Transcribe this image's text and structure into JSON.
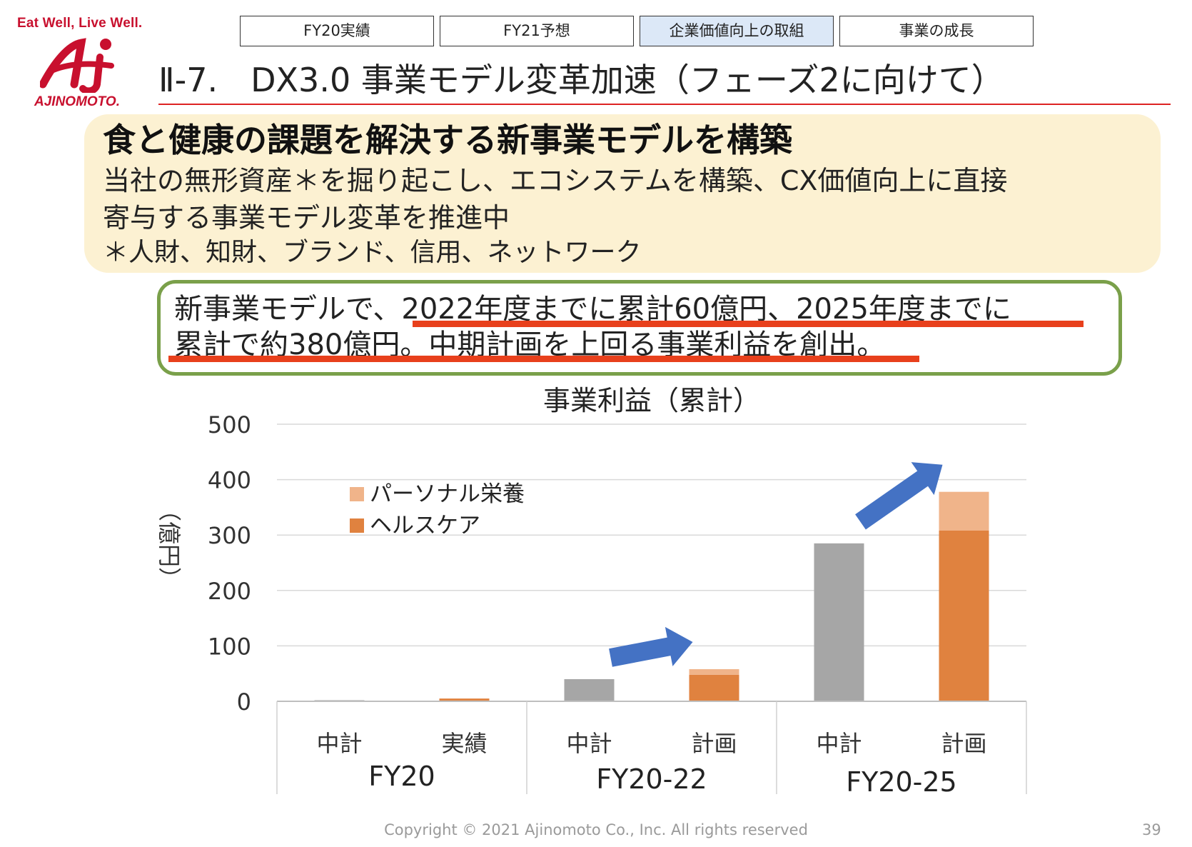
{
  "header": {
    "tagline": "Eat Well, Live Well.",
    "logo_text": "AJINOMOTO.",
    "nav_tabs": [
      {
        "label": "FY20実績"
      },
      {
        "label": "FY21予想"
      },
      {
        "label": "企業価値向上の取組"
      },
      {
        "label": "事業の成長"
      }
    ],
    "active_tab_index": 2,
    "title": "Ⅱ-7.　DX3.0 事業モデル変革加速（フェーズ2に向けて）"
  },
  "summary": {
    "heading": "食と健康の課題を解決する新事業モデルを構築",
    "line1": "当社の無形資産＊を掘り起こし、エコシステムを構築、CX価値向上に直接",
    "line2": "寄与する事業モデル変革を推進中",
    "note": "＊人財、知財、ブランド、信用、ネットワーク"
  },
  "callout": {
    "line1": "新事業モデルで、2022年度までに累計60億円、2025年度までに",
    "line2": "累計で約380億円。中期計画を上回る事業利益を創出。"
  },
  "chart_data": {
    "type": "bar",
    "stacked": true,
    "title": "事業利益（累計）",
    "ylabel": "（億円）",
    "ylim": [
      0,
      500
    ],
    "yticks": [
      0,
      100,
      200,
      300,
      400,
      500
    ],
    "grid": true,
    "legend_position": "upper-left",
    "groups": [
      {
        "label": "FY20",
        "categories": [
          "中計",
          "実績"
        ]
      },
      {
        "label": "FY20-22",
        "categories": [
          "中計",
          "計画"
        ]
      },
      {
        "label": "FY20-25",
        "categories": [
          "中計",
          "計画"
        ]
      }
    ],
    "categories": [
      "中計",
      "実績",
      "中計",
      "計画",
      "中計",
      "計画"
    ],
    "series": [
      {
        "name": "",
        "color": "#a6a6a6",
        "values": [
          2,
          0,
          40,
          0,
          285,
          0
        ]
      },
      {
        "name": "ヘルスケア",
        "color": "#e0823f",
        "values": [
          0,
          5,
          0,
          48,
          0,
          308
        ]
      },
      {
        "name": "パーソナル栄養",
        "color": "#f0b48a",
        "values": [
          0,
          0,
          0,
          10,
          0,
          70
        ]
      }
    ],
    "arrows": [
      {
        "from_category_index": 2,
        "to_category_index": 3,
        "color": "#4472c4"
      },
      {
        "from_category_index": 4,
        "to_category_index": 5,
        "color": "#4472c4"
      }
    ]
  },
  "footer": {
    "copyright": "Copyright © 2021 Ajinomoto Co., Inc. All rights reserved",
    "page": "39"
  }
}
